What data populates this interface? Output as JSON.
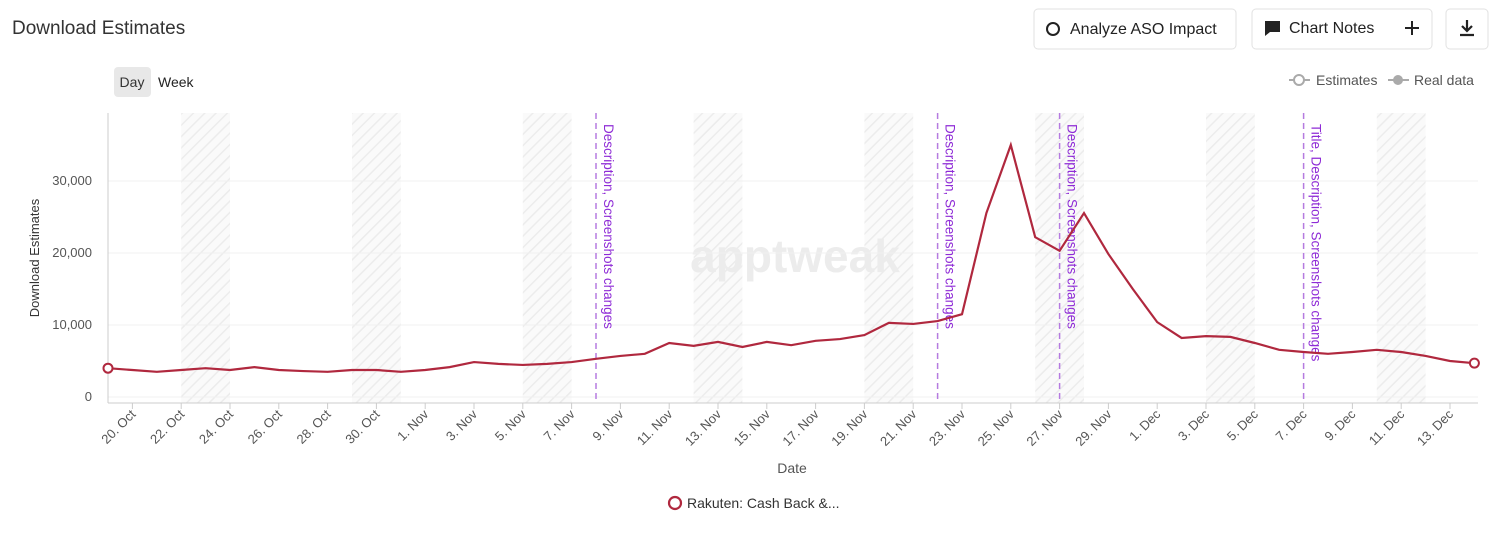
{
  "header": {
    "title": "Download Estimates",
    "buttons": [
      "Analyze ASO Impact",
      "Chart Notes"
    ]
  },
  "toggles": [
    "Day",
    "Week"
  ],
  "legend_top": [
    "Estimates",
    "Real data"
  ],
  "chart_data": {
    "type": "line",
    "watermark": "apptweak",
    "ylabel": "Download Estimates",
    "xlabel": "Date",
    "categories": [
      null,
      "20. Oct",
      null,
      "22. Oct",
      null,
      "24. Oct",
      null,
      "26. Oct",
      null,
      "28. Oct",
      null,
      "30. Oct",
      null,
      "1. Nov",
      null,
      "3. Nov",
      null,
      "5. Nov",
      null,
      "7. Nov",
      null,
      "9. Nov",
      null,
      "11. Nov",
      null,
      "13. Nov",
      null,
      "15. Nov",
      null,
      "17. Nov",
      null,
      "19. Nov",
      null,
      "21. Nov",
      null,
      "23. Nov",
      null,
      "25. Nov",
      null,
      "27. Nov",
      null,
      "29. Nov",
      null,
      "1. Dec",
      null,
      "3. Dec",
      null,
      "5. Dec",
      null,
      "7. Dec",
      null,
      "9. Dec",
      null,
      "11. Dec",
      null,
      "13. Dec",
      null
    ],
    "series": [
      {
        "name": "Rakuten: Cash Back &...",
        "color": "#b0283e",
        "values": [
          4000,
          3750,
          3500,
          3750,
          4000,
          3750,
          4150,
          3750,
          3600,
          3500,
          3750,
          3750,
          3500,
          3750,
          4150,
          4850,
          4600,
          4450,
          4600,
          4850,
          5300,
          5700,
          6000,
          7500,
          7100,
          7650,
          6950,
          7650,
          7200,
          7800,
          8050,
          8600,
          10300,
          10150,
          10550,
          11500,
          25550,
          35000,
          22200,
          20300,
          25550,
          19850,
          15000,
          10400,
          8200,
          8450,
          8350,
          7500,
          6550,
          6250,
          6000,
          6250,
          6550,
          6250,
          5700,
          5000,
          4700
        ]
      }
    ],
    "annotations": [
      {
        "x": 20,
        "text": "Description, Screenshots changes"
      },
      {
        "x": 34,
        "text": "Description, Screenshots changes"
      },
      {
        "x": 39,
        "text": "Description, Screenshots changes"
      },
      {
        "x": 49,
        "text": "Title, Description, Screenshots changes"
      }
    ],
    "ylim": [
      0,
      40000
    ],
    "yticks": [
      0,
      {
        "value": 10000,
        "label": "10,000"
      },
      {
        "value": 20000,
        "label": "20,000"
      },
      {
        "value": 30000,
        "label": "30,000"
      }
    ],
    "grid": true
  }
}
